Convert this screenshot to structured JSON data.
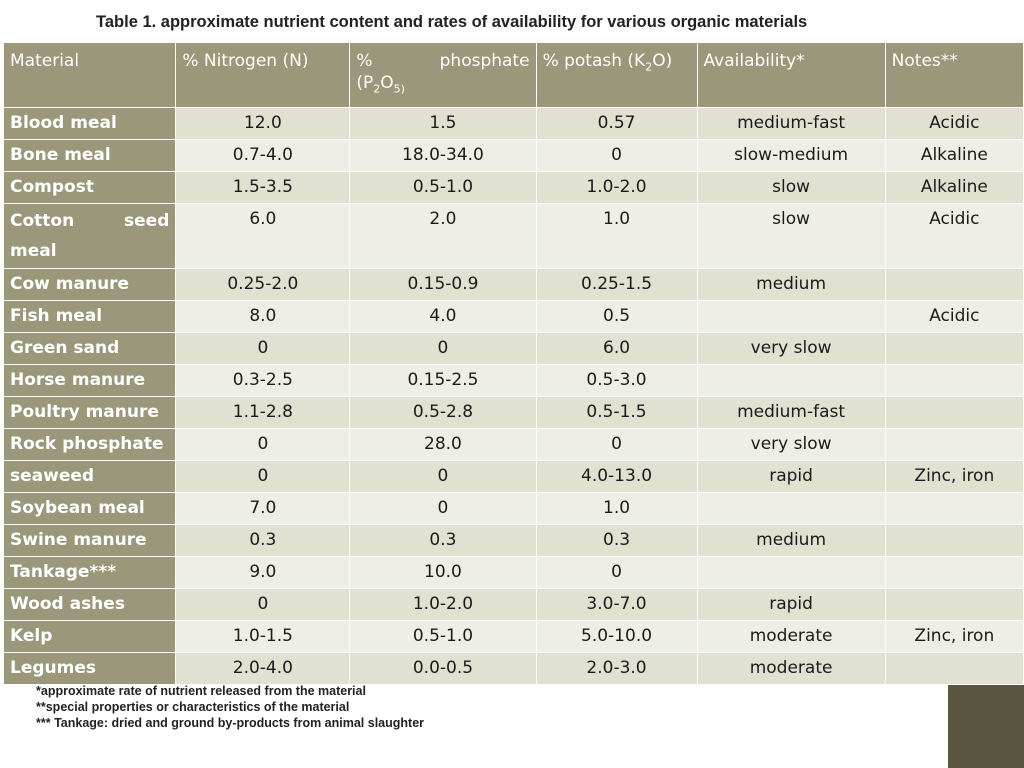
{
  "title": "Table 1. approximate nutrient content and rates of availability for various organic materials",
  "headers": {
    "material": "Material",
    "nitrogen": "% Nitrogen (N)",
    "phosphate_pct": "%",
    "phosphate_word": "phosphate",
    "phosphate_formula_a": "(P",
    "phosphate_formula_sub1": "2",
    "phosphate_formula_b": "O",
    "phosphate_formula_sub2": "5)",
    "potash_a": "% potash (K",
    "potash_sub": "2",
    "potash_b": "O)",
    "availability": "Availability*",
    "notes": "Notes**"
  },
  "rows": [
    {
      "material": "Blood meal",
      "n": "12.0",
      "p": "1.5",
      "k": "0.57",
      "avail": "medium-fast",
      "notes": "Acidic"
    },
    {
      "material": "Bone meal",
      "n": "0.7-4.0",
      "p": "18.0-34.0",
      "k": "0",
      "avail": "slow-medium",
      "notes": "Alkaline"
    },
    {
      "material": "Compost",
      "n": "1.5-3.5",
      "p": "0.5-1.0",
      "k": "1.0-2.0",
      "avail": "slow",
      "notes": "Alkaline"
    },
    {
      "material": "Cotton seed meal",
      "n": "6.0",
      "p": "2.0",
      "k": "1.0",
      "avail": "slow",
      "notes": "Acidic"
    },
    {
      "material": "Cow manure",
      "n": "0.25-2.0",
      "p": "0.15-0.9",
      "k": "0.25-1.5",
      "avail": "medium",
      "notes": ""
    },
    {
      "material": "Fish meal",
      "n": "8.0",
      "p": "4.0",
      "k": "0.5",
      "avail": "",
      "notes": "Acidic"
    },
    {
      "material": "Green sand",
      "n": "0",
      "p": "0",
      "k": "6.0",
      "avail": "very slow",
      "notes": ""
    },
    {
      "material": "Horse manure",
      "n": "0.3-2.5",
      "p": "0.15-2.5",
      "k": "0.5-3.0",
      "avail": "",
      "notes": ""
    },
    {
      "material": "Poultry manure",
      "n": "1.1-2.8",
      "p": "0.5-2.8",
      "k": "0.5-1.5",
      "avail": "medium-fast",
      "notes": ""
    },
    {
      "material": "Rock phosphate",
      "n": "0",
      "p": "28.0",
      "k": "0",
      "avail": "very slow",
      "notes": ""
    },
    {
      "material": "seaweed",
      "n": "0",
      "p": "0",
      "k": "4.0-13.0",
      "avail": "rapid",
      "notes": "Zinc, iron"
    },
    {
      "material": "Soybean meal",
      "n": "7.0",
      "p": "0",
      "k": "1.0",
      "avail": "",
      "notes": ""
    },
    {
      "material": "Swine manure",
      "n": "0.3",
      "p": "0.3",
      "k": "0.3",
      "avail": "medium",
      "notes": ""
    },
    {
      "material": "Tankage***",
      "n": "9.0",
      "p": "10.0",
      "k": "0",
      "avail": "",
      "notes": ""
    },
    {
      "material": "Wood ashes",
      "n": "0",
      "p": "1.0-2.0",
      "k": "3.0-7.0",
      "avail": "rapid",
      "notes": ""
    },
    {
      "material": "Kelp",
      "n": "1.0-1.5",
      "p": "0.5-1.0",
      "k": "5.0-10.0",
      "avail": "moderate",
      "notes": "Zinc, iron"
    },
    {
      "material": "Legumes",
      "n": "2.0-4.0",
      "p": "0.0-0.5",
      "k": "2.0-3.0",
      "avail": "moderate",
      "notes": ""
    }
  ],
  "footnotes": [
    "*approximate rate of nutrient released from the material",
    "**special properties or characteristics of the material",
    "*** Tankage: dried and ground by-products from animal slaughter"
  ],
  "colors": {
    "header_bg": "#9a977a",
    "row_odd": "#e2e0d1",
    "row_even": "#efeee6",
    "side_band": "#d9d6c3",
    "side_band_dark": "#5a5640"
  }
}
